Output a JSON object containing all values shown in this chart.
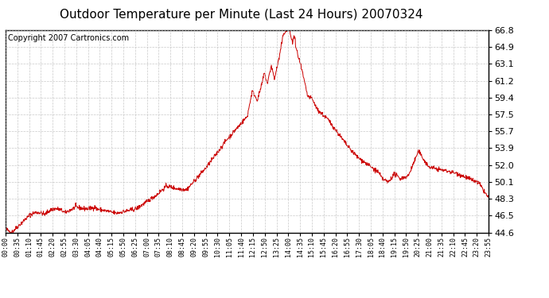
{
  "title": "Outdoor Temperature per Minute (Last 24 Hours) 20070324",
  "copyright_text": "Copyright 2007 Cartronics.com",
  "line_color": "#cc0000",
  "bg_color": "#ffffff",
  "plot_bg_color": "#ffffff",
  "grid_color": "#bbbbbb",
  "ylim": [
    44.6,
    66.8
  ],
  "yticks": [
    44.6,
    46.5,
    48.3,
    50.1,
    52.0,
    53.9,
    55.7,
    57.5,
    59.4,
    61.2,
    63.1,
    64.9,
    66.8
  ],
  "xtick_labels": [
    "00:00",
    "00:35",
    "01:10",
    "01:45",
    "02:20",
    "02:55",
    "03:30",
    "04:05",
    "04:40",
    "05:15",
    "05:50",
    "06:25",
    "07:00",
    "07:35",
    "08:10",
    "08:45",
    "09:20",
    "09:55",
    "10:30",
    "11:05",
    "11:40",
    "12:15",
    "12:50",
    "13:25",
    "14:00",
    "14:35",
    "15:10",
    "15:45",
    "16:20",
    "16:55",
    "17:30",
    "18:05",
    "18:40",
    "19:15",
    "19:50",
    "20:25",
    "21:00",
    "21:35",
    "22:10",
    "22:45",
    "23:20",
    "23:55"
  ],
  "num_points": 1440,
  "title_fontsize": 11,
  "copyright_fontsize": 7,
  "ytick_fontsize": 8,
  "xtick_fontsize": 6
}
